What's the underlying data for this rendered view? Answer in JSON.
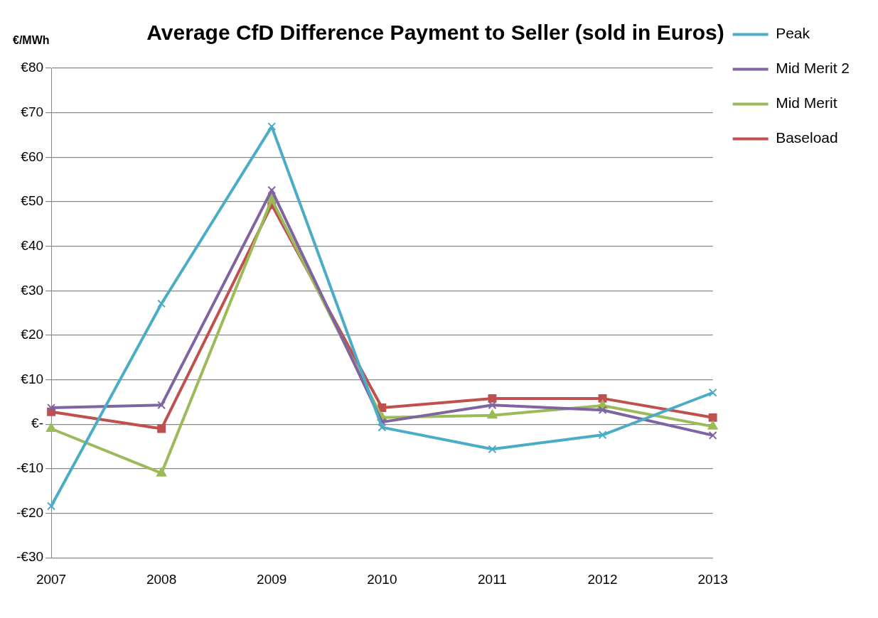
{
  "chart_data": {
    "type": "line",
    "title": "Average CfD Difference Payment to Seller (sold in Euros)",
    "ylabel": "€/MWh",
    "categories": [
      "2007",
      "2008",
      "2009",
      "2010",
      "2011",
      "2012",
      "2013"
    ],
    "series": [
      {
        "name": "Peak",
        "color": "#4bacc6",
        "marker": "cross",
        "values": [
          -18.4,
          27.1,
          66.9,
          -0.7,
          -5.6,
          -2.4,
          7.1
        ]
      },
      {
        "name": "Mid Merit 2",
        "color": "#8064a2",
        "marker": "cross",
        "values": [
          3.7,
          4.3,
          52.6,
          0.5,
          4.3,
          3.2,
          -2.5
        ]
      },
      {
        "name": "Mid Merit",
        "color": "#9bbb59",
        "marker": "triangle",
        "values": [
          -1,
          -11,
          50.5,
          1.5,
          2,
          4.2,
          -0.5
        ]
      },
      {
        "name": "Baseload",
        "color": "#c0504d",
        "marker": "square",
        "values": [
          2.8,
          -1,
          49.3,
          3.7,
          5.8,
          5.8,
          1.5
        ]
      }
    ],
    "ylim": [
      -30,
      80
    ],
    "yticks": [
      {
        "value": -30,
        "label": "-€30"
      },
      {
        "value": -20,
        "label": "-€20"
      },
      {
        "value": -10,
        "label": "-€10"
      },
      {
        "value": 0,
        "label": "€-"
      },
      {
        "value": 10,
        "label": "€10"
      },
      {
        "value": 20,
        "label": "€20"
      },
      {
        "value": 30,
        "label": "€30"
      },
      {
        "value": 40,
        "label": "€40"
      },
      {
        "value": 50,
        "label": "€50"
      },
      {
        "value": 60,
        "label": "€60"
      },
      {
        "value": 70,
        "label": "€70"
      },
      {
        "value": 80,
        "label": "€80"
      }
    ],
    "grid": "y",
    "legend": "right",
    "line_style": "solid"
  }
}
